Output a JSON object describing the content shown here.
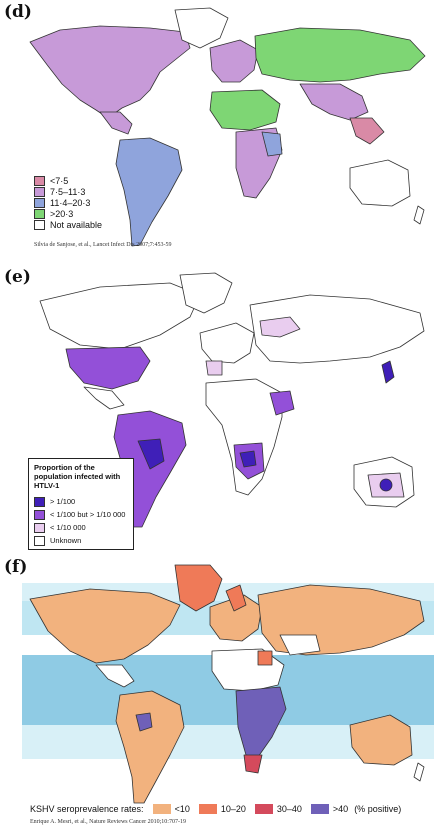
{
  "panel_d": {
    "label": "(d)",
    "legend": [
      {
        "text": "<7·5",
        "color": "#d98aa6"
      },
      {
        "text": "7·5–11·3",
        "color": "#c79ad8"
      },
      {
        "text": "11·4–20·3",
        "color": "#8fa4dc"
      },
      {
        "text": ">20·3",
        "color": "#7ed674"
      },
      {
        "text": "Not available",
        "color": "#ffffff"
      }
    ],
    "citation": "Silvia de Sanjose, et al., Lancet Infect Dis 2007;7:453-59"
  },
  "panel_e": {
    "label": "(e)",
    "legend_title": "Proportion of the population infected with HTLV-1",
    "legend": [
      {
        "text": "> 1/100",
        "color": "#3f1fb8"
      },
      {
        "text": "< 1/100 but > 1/10 000",
        "color": "#9350d8"
      },
      {
        "text": "< 1/10 000",
        "color": "#e9cdef"
      },
      {
        "text": "Unknown",
        "color": "#ffffff"
      }
    ]
  },
  "panel_f": {
    "label": "(f)",
    "legend_title": "KSHV seroprevalence rates:",
    "legend": [
      {
        "text": "<10",
        "color": "#f2b27e"
      },
      {
        "text": "10–20",
        "color": "#ef7a58"
      },
      {
        "text": "30–40",
        "color": "#d44a5c"
      },
      {
        "text": ">40",
        "color": "#6f60b8"
      }
    ],
    "legend_suffix": "(% positive)",
    "citation": "Enrique A. Mesri, et al., Nature Reviews Cancer 2010;10:707-19"
  }
}
